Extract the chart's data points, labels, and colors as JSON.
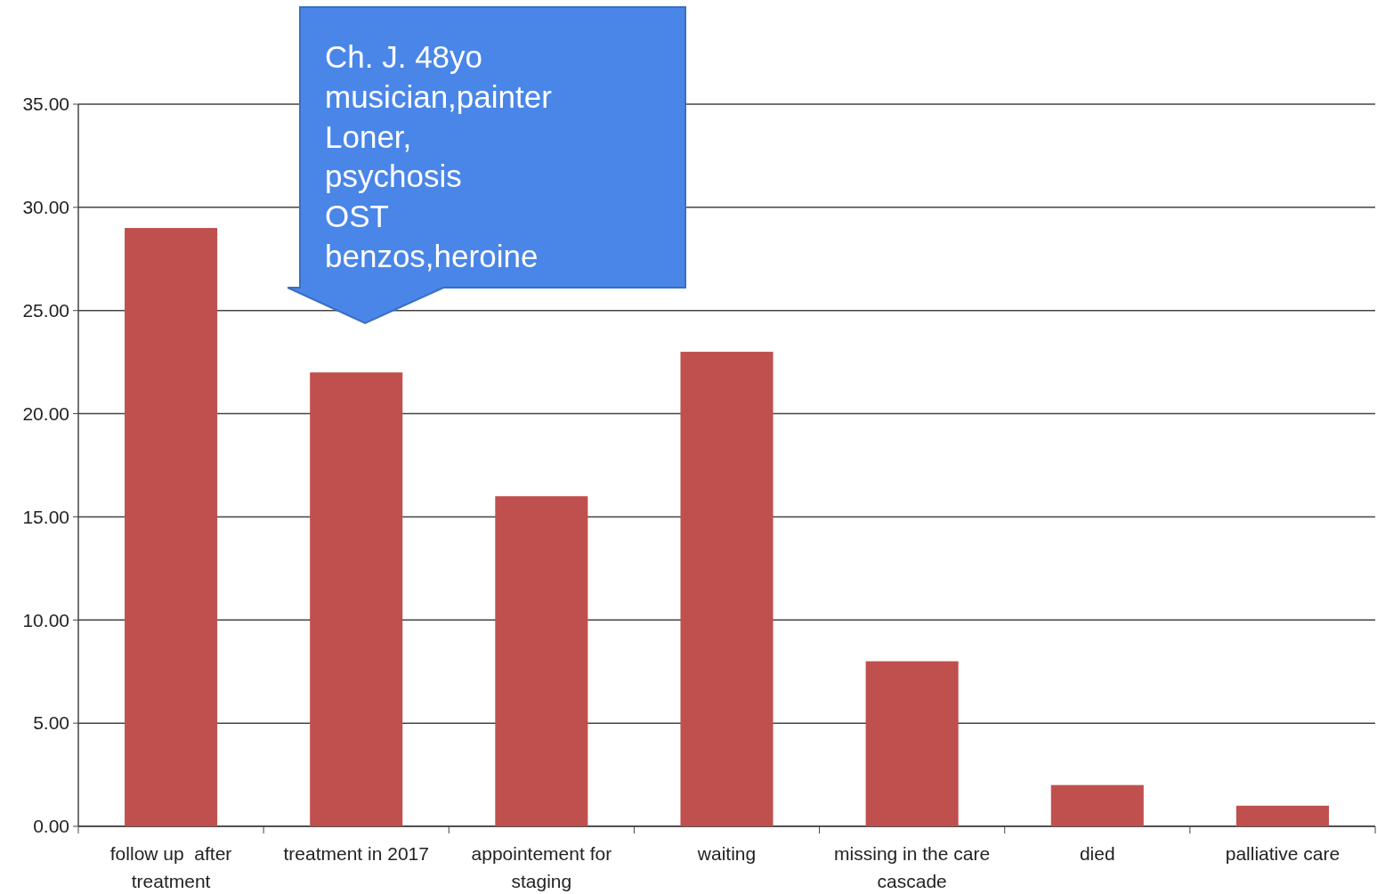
{
  "chart_data": {
    "type": "bar",
    "categories": [
      "follow up  after\ntreatment",
      "treatment in 2017",
      "appointement for\nstaging",
      "waiting",
      "missing in the care\ncascade",
      "died",
      "palliative care"
    ],
    "values": [
      29,
      22,
      16,
      23,
      8,
      2,
      1
    ],
    "color": "#c0504d",
    "ylim": [
      0,
      35
    ],
    "yticks": [
      {
        "value": 0,
        "label": "0.00"
      },
      {
        "value": 5,
        "label": "5.00"
      },
      {
        "value": 10,
        "label": "10.00"
      },
      {
        "value": 15,
        "label": "15.00"
      },
      {
        "value": 20,
        "label": "20.00"
      },
      {
        "value": 25,
        "label": "25.00"
      },
      {
        "value": 30,
        "label": "30.00"
      },
      {
        "value": 35,
        "label": "35.00"
      }
    ],
    "grid": "y",
    "annotations": [
      "Ch. J. 48yo\nmusician,painter\nLoner,\npsychosis\nOST\nbenzos,heroine"
    ]
  }
}
